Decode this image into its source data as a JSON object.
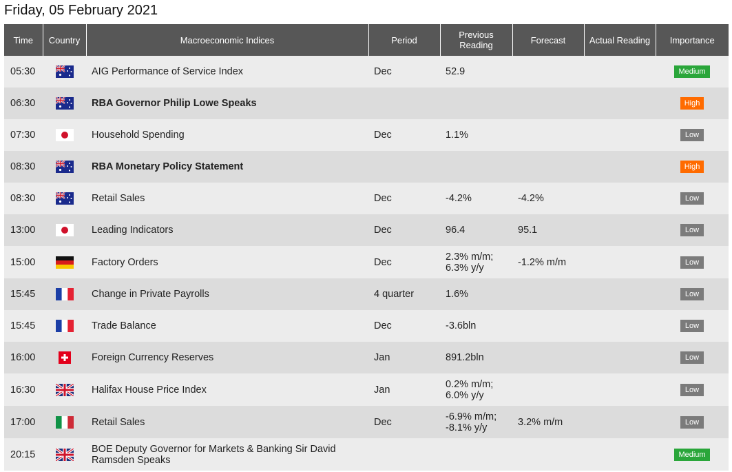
{
  "page": {
    "title": "Friday, 05 February 2021"
  },
  "columns": {
    "time": "Time",
    "country": "Country",
    "indices": "Macroeconomic Indices",
    "period": "Period",
    "previous": "Previous Reading",
    "forecast": "Forecast",
    "actual": "Actual Reading",
    "importance": "Importance"
  },
  "colors": {
    "header_bg": "#575757",
    "low": "#7b7b7b",
    "high": "#ff6b00",
    "medium": "#2aa63a"
  },
  "rows": [
    {
      "time": "05:30",
      "country_icon": "au-flag-icon",
      "name": "AIG Performance of Service Index",
      "bold": false,
      "period": "Dec",
      "previous": "52.9",
      "forecast": "",
      "actual": "",
      "importance": "Medium"
    },
    {
      "time": "06:30",
      "country_icon": "au-flag-icon",
      "name": "RBA Governor Philip Lowe Speaks",
      "bold": true,
      "period": "",
      "previous": "",
      "forecast": "",
      "actual": "",
      "importance": "High"
    },
    {
      "time": "07:30",
      "country_icon": "jp-flag-icon",
      "name": "Household Spending",
      "bold": false,
      "period": "Dec",
      "previous": "1.1%",
      "forecast": "",
      "actual": "",
      "importance": "Low"
    },
    {
      "time": "08:30",
      "country_icon": "au-flag-icon",
      "name": "RBA Monetary Policy Statement",
      "bold": true,
      "period": "",
      "previous": "",
      "forecast": "",
      "actual": "",
      "importance": "High"
    },
    {
      "time": "08:30",
      "country_icon": "au-flag-icon",
      "name": "Retail Sales",
      "bold": false,
      "period": "Dec",
      "previous": "-4.2%",
      "forecast": "-4.2%",
      "actual": "",
      "importance": "Low"
    },
    {
      "time": "13:00",
      "country_icon": "jp-flag-icon",
      "name": "Leading Indicators",
      "bold": false,
      "period": "Dec",
      "previous": "96.4",
      "forecast": "95.1",
      "actual": "",
      "importance": "Low"
    },
    {
      "time": "15:00",
      "country_icon": "de-flag-icon",
      "name": "Factory Orders",
      "bold": false,
      "period": "Dec",
      "previous": "2.3% m/m; 6.3% y/y",
      "forecast": "-1.2% m/m",
      "actual": "",
      "importance": "Low"
    },
    {
      "time": "15:45",
      "country_icon": "fr-flag-icon",
      "name": "Change in Private Payrolls",
      "bold": false,
      "period": "4 quarter",
      "previous": "1.6%",
      "forecast": "",
      "actual": "",
      "importance": "Low"
    },
    {
      "time": "15:45",
      "country_icon": "fr-flag-icon",
      "name": "Trade Balance",
      "bold": false,
      "period": "Dec",
      "previous": "-3.6bln",
      "forecast": "",
      "actual": "",
      "importance": "Low"
    },
    {
      "time": "16:00",
      "country_icon": "ch-flag-icon",
      "name": "Foreign Currency Reserves",
      "bold": false,
      "period": "Jan",
      "previous": "891.2bln",
      "forecast": "",
      "actual": "",
      "importance": "Low"
    },
    {
      "time": "16:30",
      "country_icon": "gb-flag-icon",
      "name": "Halifax House Price Index",
      "bold": false,
      "period": "Jan",
      "previous": "0.2% m/m; 6.0% y/y",
      "forecast": "",
      "actual": "",
      "importance": "Low"
    },
    {
      "time": "17:00",
      "country_icon": "it-flag-icon",
      "name": "Retail Sales",
      "bold": false,
      "period": "Dec",
      "previous": "-6.9% m/m; -8.1% y/y",
      "forecast": "3.2% m/m",
      "actual": "",
      "importance": "Low"
    },
    {
      "time": "20:15",
      "country_icon": "gb-flag-icon",
      "name": "BOE Deputy Governor for Markets & Banking Sir David Ramsden Speaks",
      "bold": false,
      "period": "",
      "previous": "",
      "forecast": "",
      "actual": "",
      "importance": "Medium"
    }
  ]
}
